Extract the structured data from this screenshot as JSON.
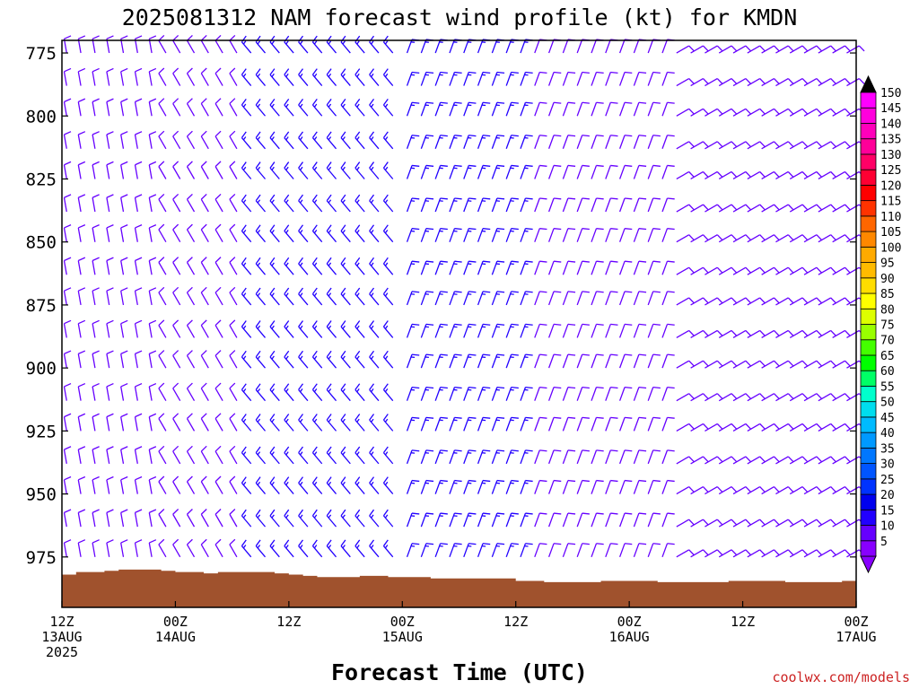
{
  "chart_data": {
    "type": "wind-barb-profile",
    "title": "2025081312 NAM forecast wind profile (kt) for KMDN",
    "xlabel": "Forecast Time (UTC)",
    "credit": "coolwx.com/models",
    "y_ticks": [
      775,
      800,
      825,
      850,
      875,
      900,
      925,
      950,
      975
    ],
    "ylim": [
      770,
      995
    ],
    "y_axis_inverted": true,
    "x_ticks": [
      {
        "hour": 0,
        "lines": [
          "12Z",
          "13AUG",
          "2025"
        ]
      },
      {
        "hour": 12,
        "lines": [
          "00Z",
          "14AUG"
        ]
      },
      {
        "hour": 24,
        "lines": [
          "12Z"
        ]
      },
      {
        "hour": 36,
        "lines": [
          "00Z",
          "15AUG"
        ]
      },
      {
        "hour": 48,
        "lines": [
          "12Z"
        ]
      },
      {
        "hour": 60,
        "lines": [
          "00Z",
          "16AUG"
        ]
      },
      {
        "hour": 72,
        "lines": [
          "12Z"
        ]
      },
      {
        "hour": 84,
        "lines": [
          "00Z",
          "17AUG"
        ]
      }
    ],
    "xlim_hours": [
      0,
      84
    ],
    "colorbar": {
      "units": "kt",
      "levels": [
        5,
        10,
        15,
        20,
        25,
        30,
        35,
        40,
        45,
        50,
        55,
        60,
        65,
        70,
        75,
        80,
        85,
        90,
        95,
        100,
        105,
        110,
        115,
        120,
        125,
        130,
        135,
        140,
        145,
        150
      ],
      "colors": [
        "#8800ff",
        "#6600ff",
        "#2200ff",
        "#0000ee",
        "#0033ff",
        "#0055ff",
        "#0077ff",
        "#0099ff",
        "#00bbff",
        "#00ddee",
        "#00ffcc",
        "#00ff66",
        "#00ff00",
        "#44ff00",
        "#99ff00",
        "#ddff00",
        "#ffff00",
        "#ffdd00",
        "#ffbb00",
        "#ffaa00",
        "#ff8800",
        "#ff6600",
        "#ff3300",
        "#ff0000",
        "#ff0033",
        "#ff0066",
        "#ff0099",
        "#ff00bb",
        "#ff00dd",
        "#ff00ff"
      ],
      "top_arrow_color": "#000000",
      "bottom_arrow_color": "#8800ff"
    },
    "terrain": {
      "color": "#a0522d",
      "hours": [
        0,
        1.5,
        3,
        4.5,
        6,
        7.5,
        9,
        10.5,
        12,
        13.5,
        15,
        16.5,
        18,
        19.5,
        21,
        22.5,
        24,
        25.5,
        27,
        28.5,
        30,
        31.5,
        33,
        34.5,
        36,
        37.5,
        39,
        40.5,
        42,
        43.5,
        45,
        46.5,
        48,
        49.5,
        51,
        52.5,
        54,
        55.5,
        57,
        58.5,
        60,
        61.5,
        63,
        64.5,
        66,
        67.5,
        69,
        70.5,
        72,
        73.5,
        75,
        76.5,
        78,
        79.5,
        81,
        82.5,
        84
      ],
      "surface_pressure": [
        982,
        981,
        981,
        980.5,
        980,
        980,
        980,
        980.5,
        981,
        981,
        981.5,
        981,
        981,
        981,
        981,
        981.5,
        982,
        982.5,
        983,
        983,
        983,
        982.5,
        982.5,
        983,
        983,
        983,
        983.5,
        983.5,
        983.5,
        983.5,
        983.5,
        983.5,
        984.5,
        984.5,
        985,
        985,
        985,
        985,
        984.5,
        984.5,
        984.5,
        984.5,
        985,
        985,
        985,
        985,
        985,
        984.5,
        984.5,
        984.5,
        984.5,
        985,
        985,
        985,
        985,
        984.5,
        984.5
      ]
    },
    "barbs": {
      "hour_step": 1.5,
      "levels": [
        775,
        788,
        800,
        813,
        825,
        838,
        850,
        863,
        875,
        888,
        900,
        913,
        925,
        938,
        950,
        963,
        975
      ],
      "phases": [
        {
          "from": 0,
          "to": 10,
          "dir_deg": 350,
          "speed_kt": 12
        },
        {
          "from": 10,
          "to": 20,
          "dir_deg": 330,
          "speed_kt": 10
        },
        {
          "from": 20,
          "to": 36,
          "dir_deg": 320,
          "speed_kt": 15
        },
        {
          "from": 36,
          "to": 50,
          "dir_deg": 20,
          "speed_kt": 15
        },
        {
          "from": 50,
          "to": 64,
          "dir_deg": 20,
          "speed_kt": 10
        },
        {
          "from": 64,
          "to": 84,
          "dir_deg": 60,
          "speed_kt": 10
        }
      ]
    }
  }
}
